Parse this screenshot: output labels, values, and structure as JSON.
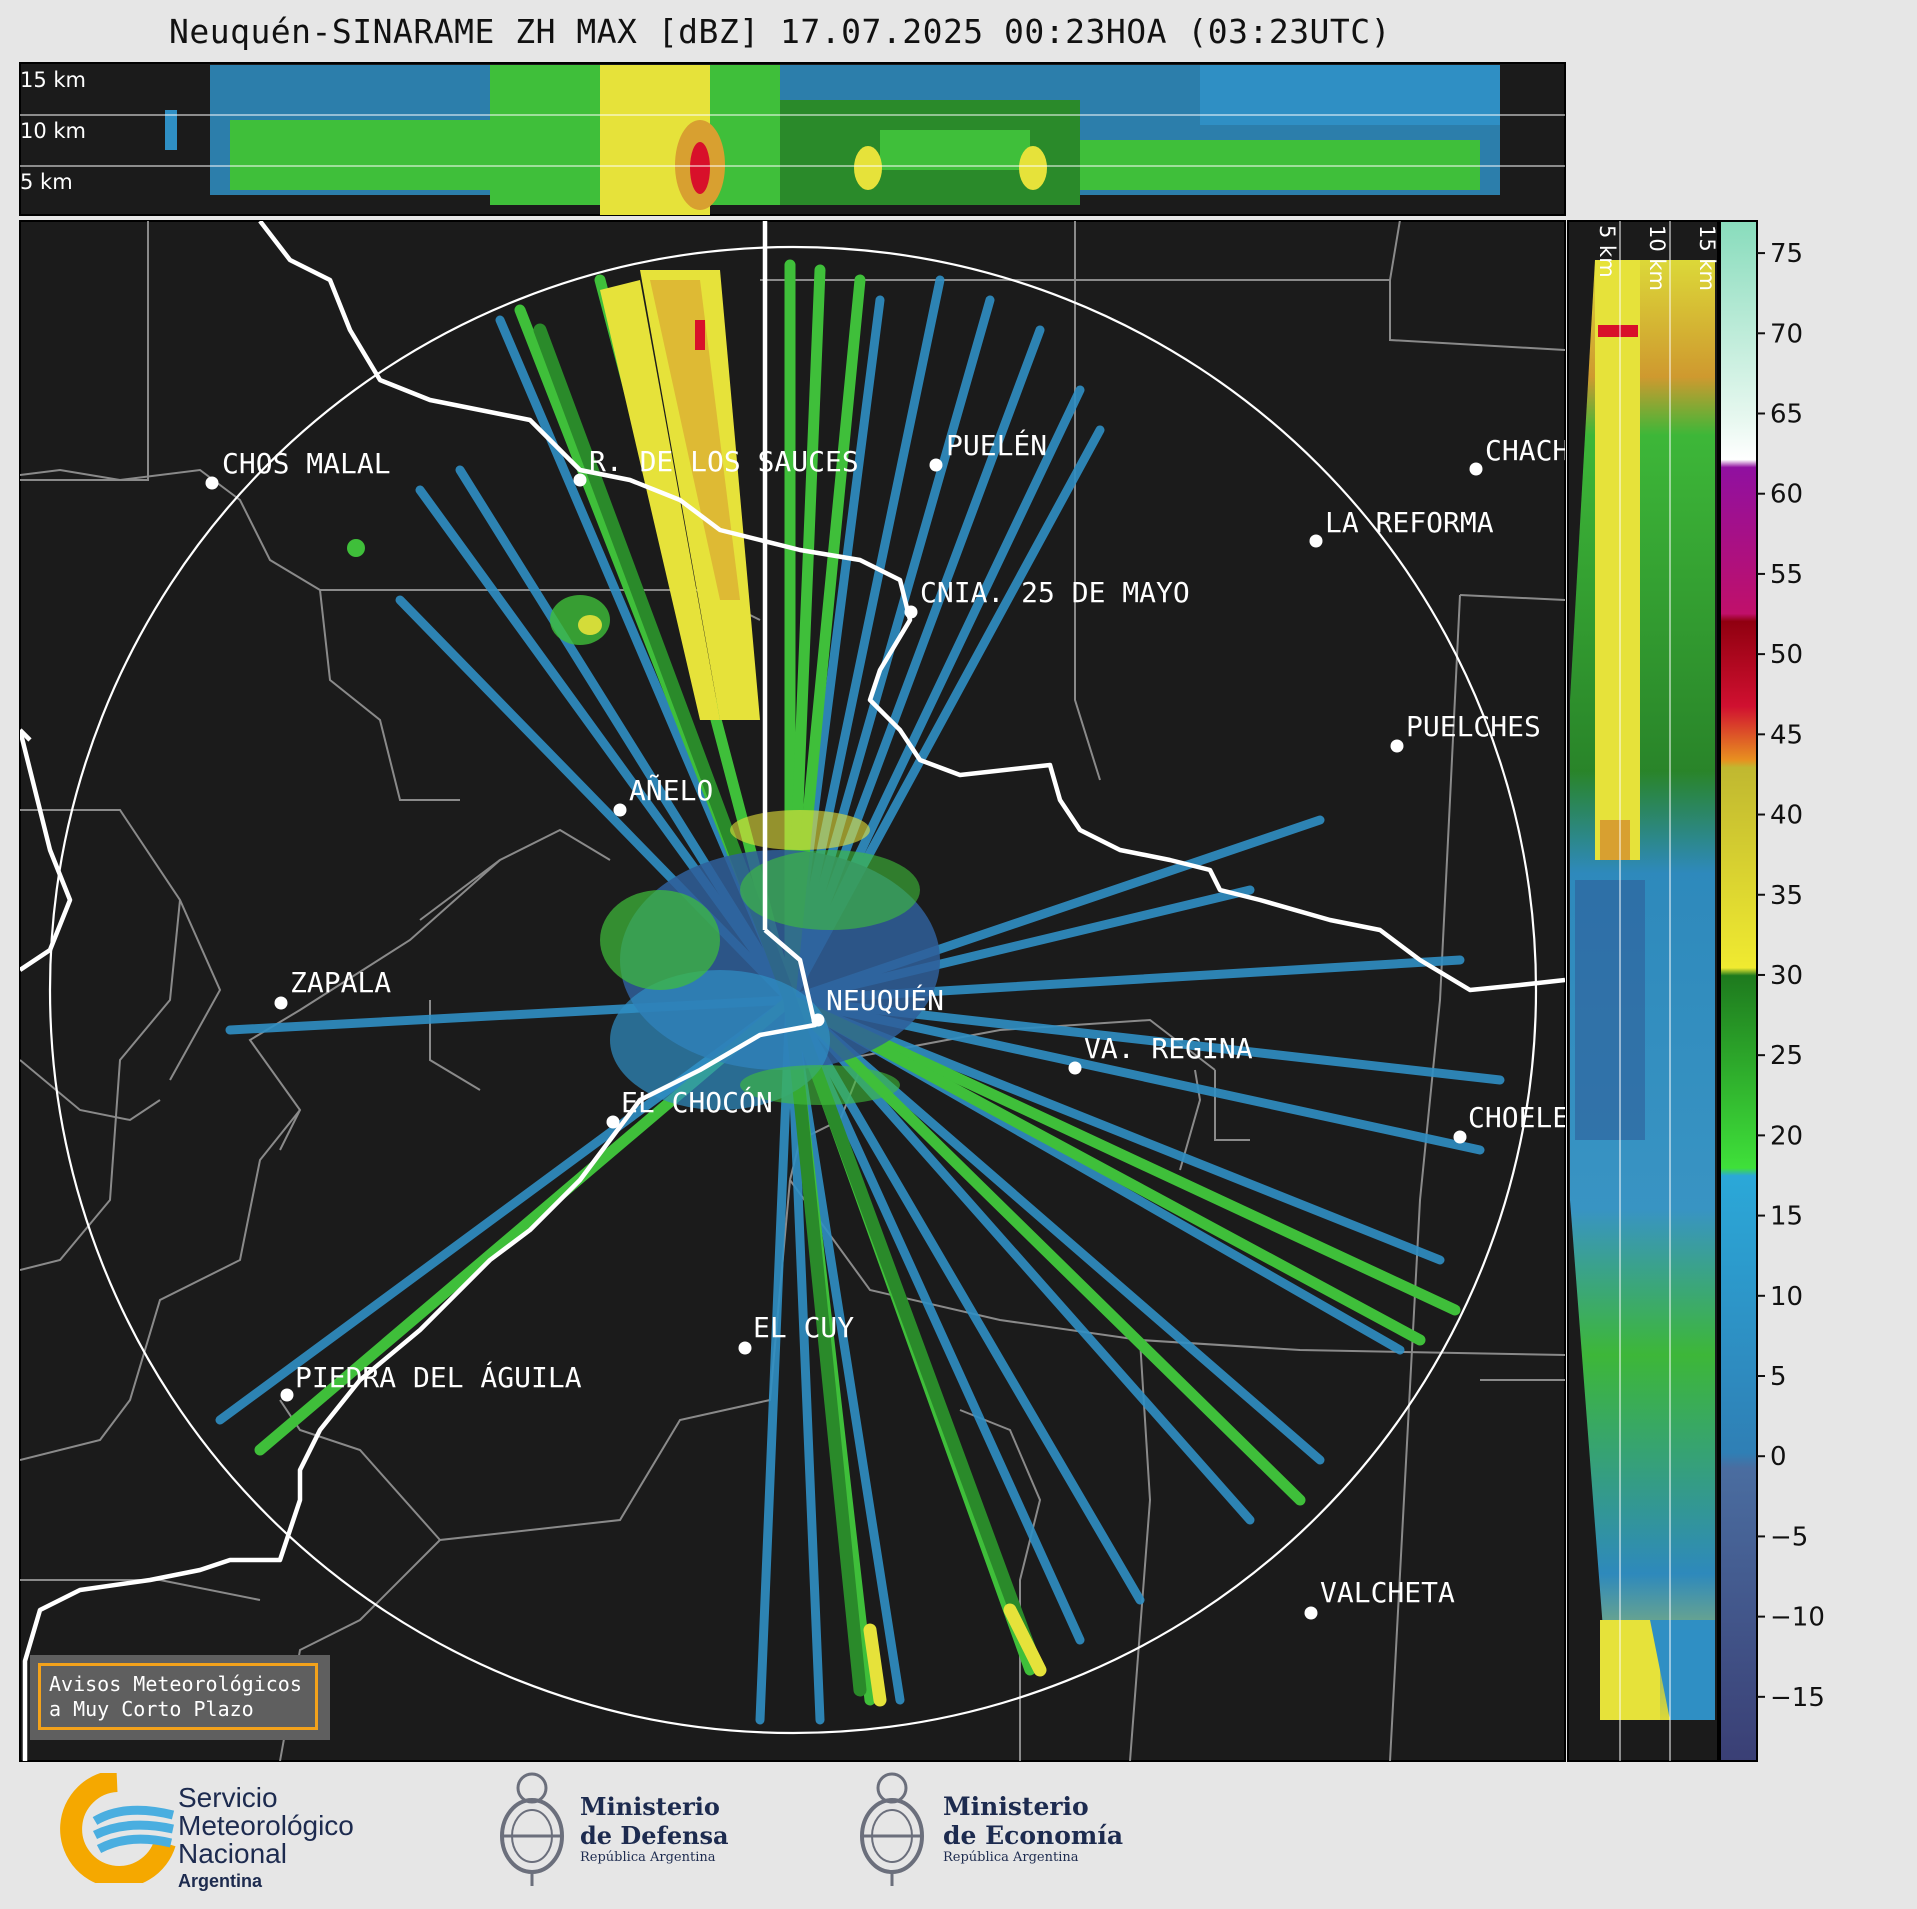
{
  "title": "Neuquén-SINARAME ZH MAX [dBZ] 17.07.2025 00:23HOA (03:23UTC)",
  "top_panel": {
    "km_labels": [
      "15 km",
      "10 km",
      "5 km"
    ]
  },
  "side_panel": {
    "km_labels": [
      "5 km",
      "10 km",
      "15 km"
    ]
  },
  "cities": [
    {
      "name": "CHOS MALAL"
    },
    {
      "name": "R. DE LOS SAUCES"
    },
    {
      "name": "PUELÉN"
    },
    {
      "name": "CHACH"
    },
    {
      "name": "LA REFORMA"
    },
    {
      "name": "CNIA. 25 DE MAYO"
    },
    {
      "name": "PUELCHES"
    },
    {
      "name": "AÑELO"
    },
    {
      "name": "ZAPALA"
    },
    {
      "name": "NEUQUÉN"
    },
    {
      "name": "VA. REGINA"
    },
    {
      "name": "EL CHOCÓN"
    },
    {
      "name": "CHOELE"
    },
    {
      "name": "EL CUY"
    },
    {
      "name": "PIEDRA DEL ÁGUILA"
    },
    {
      "name": "VALCHETA"
    }
  ],
  "colorbar": {
    "unit": "dBZ",
    "min": -19,
    "max": 77,
    "ticks": [
      "75",
      "70",
      "65",
      "60",
      "55",
      "50",
      "45",
      "40",
      "35",
      "30",
      "25",
      "20",
      "15",
      "10",
      "5",
      "0",
      "−5",
      "−10",
      "−15"
    ],
    "stops": [
      {
        "from": -19,
        "to": 0,
        "color": "#3a3f75"
      },
      {
        "from": 0,
        "to": 18,
        "color": "#2f8fc4"
      },
      {
        "from": 18,
        "to": 30,
        "color": "#3fbf3a"
      },
      {
        "from": 30,
        "to": 43,
        "color": "#e6e23a"
      },
      {
        "from": 43,
        "to": 48,
        "color": "#d8102a"
      },
      {
        "from": 48,
        "to": 58,
        "color": "#d010d0"
      },
      {
        "from": 58,
        "to": 61,
        "color": "#ffffff"
      },
      {
        "from": 61,
        "to": 77,
        "color": "#8fe0c4"
      }
    ]
  },
  "notice": {
    "line1": "Avisos Meteorológicos",
    "line2": "a Muy Corto Plazo"
  },
  "footer": {
    "smn": {
      "line1": "Servicio",
      "line2": "Meteorológico",
      "line3": "Nacional",
      "line4": "Argentina"
    },
    "defensa": {
      "line1": "Ministerio",
      "line2": "de Defensa",
      "line3": "República Argentina"
    },
    "economia": {
      "line1": "Ministerio",
      "line2": "de Economía",
      "line3": "República Argentina"
    }
  },
  "colors": {
    "background": "#1b1b1b",
    "blue": "#2f8fc4",
    "green": "#3fbf3a",
    "dark_green": "#2a8a2a",
    "yellow": "#e6e23a",
    "red": "#d8102a",
    "accent": "#f3a21b"
  }
}
